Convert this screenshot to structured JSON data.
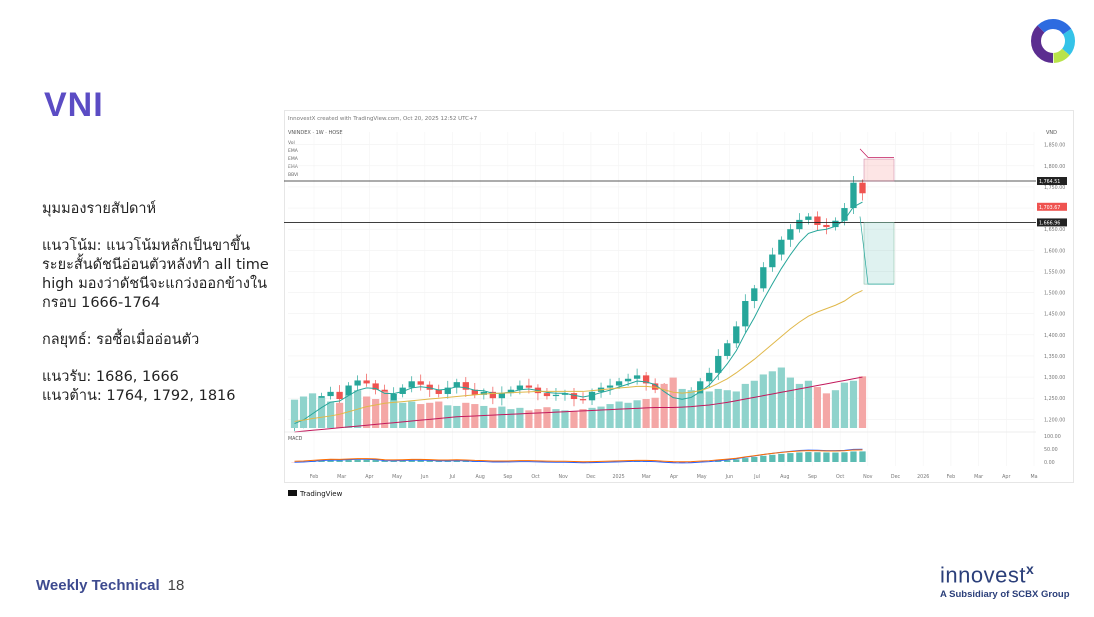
{
  "slide": {
    "title": "VNI",
    "notes": [
      "มุมมองรายสัปดาห์",
      "แนวโน้ม: แนวโน้มหลักเป็นขาขึ้น ระยะสั้นดัชนีอ่อนตัวหลังทำ all time high มองว่าดัชนีจะแกว่งออกข้างในกรอบ 1666-1764",
      "กลยุทธ์: รอซื้อเมื่ออ่อนตัว",
      "แนวรับ: 1686, 1666\nแนวต้าน: 1764, 1792, 1816"
    ],
    "footer_label": "Weekly Technical",
    "page_number": "18"
  },
  "brand": {
    "name": "innovest",
    "superscript": "x",
    "tagline": "A Subsidiary of SCBX Group"
  },
  "colors": {
    "accent": "#5b4cc4",
    "up": "#26a69a",
    "down": "#ef5350",
    "ema_short": "#26a69a",
    "ema_mid": "#e0b84a",
    "ema_long": "#c2185b"
  },
  "chart_data": {
    "type": "candlestick",
    "header": "InnovestX created with TradingView.com, Oct 20, 2025 12:52 UTC+7",
    "symbol_line": "VNINDEX · 1W · HOSE",
    "legend": [
      "Vol",
      "EMA",
      "EMA",
      "EMA",
      "BBVI"
    ],
    "price_axis_label": "VND",
    "y_ticks": [
      1200,
      1250,
      1300,
      1350,
      1400,
      1450,
      1500,
      1550,
      1600,
      1650,
      1700,
      1750,
      1800,
      1850
    ],
    "ylim": [
      1170,
      1880
    ],
    "x_labels": [
      "Feb",
      "Mar",
      "Apr",
      "May",
      "Jun",
      "Jul",
      "Aug",
      "Sep",
      "Oct",
      "Nov",
      "Dec",
      "2025",
      "Mar",
      "Apr",
      "May",
      "Jun",
      "Jul",
      "Aug",
      "Sep",
      "Oct",
      "Nov",
      "Dec",
      "2026",
      "Feb",
      "Mar",
      "Apr",
      "Ma"
    ],
    "horizontal_levels": [
      1764,
      1666
    ],
    "price_labels": [
      "1,764.51",
      "1,703.67",
      "1,666.96"
    ],
    "closes": [
      1190,
      1215,
      1240,
      1255,
      1265,
      1248,
      1280,
      1292,
      1285,
      1270,
      1240,
      1260,
      1275,
      1290,
      1282,
      1270,
      1260,
      1275,
      1288,
      1270,
      1258,
      1265,
      1250,
      1262,
      1270,
      1280,
      1275,
      1262,
      1255,
      1258,
      1262,
      1248,
      1245,
      1265,
      1275,
      1280,
      1290,
      1296,
      1304,
      1285,
      1270,
      1235,
      1225,
      1240,
      1260,
      1290,
      1310,
      1350,
      1380,
      1420,
      1480,
      1510,
      1560,
      1590,
      1625,
      1650,
      1672,
      1680,
      1660,
      1655,
      1670,
      1700,
      1760,
      1735
    ],
    "volumes": [
      0.45,
      0.5,
      0.55,
      0.48,
      0.42,
      0.4,
      0.52,
      0.6,
      0.5,
      0.46,
      0.58,
      0.44,
      0.4,
      0.42,
      0.38,
      0.4,
      0.42,
      0.36,
      0.35,
      0.4,
      0.38,
      0.35,
      0.32,
      0.34,
      0.3,
      0.32,
      0.28,
      0.3,
      0.33,
      0.3,
      0.28,
      0.26,
      0.3,
      0.32,
      0.34,
      0.38,
      0.42,
      0.4,
      0.44,
      0.46,
      0.48,
      0.7,
      0.8,
      0.62,
      0.6,
      0.55,
      0.58,
      0.62,
      0.6,
      0.58,
      0.7,
      0.75,
      0.85,
      0.9,
      0.96,
      0.8,
      0.7,
      0.75,
      0.65,
      0.55,
      0.6,
      0.72,
      0.75,
      0.82
    ],
    "ema_mid_points": [
      1195,
      1198,
      1202,
      1205,
      1208,
      1212,
      1218,
      1224,
      1230,
      1234,
      1238,
      1240,
      1242,
      1244,
      1246,
      1248,
      1250,
      1252,
      1254,
      1256,
      1258,
      1260,
      1261,
      1262,
      1263,
      1264,
      1265,
      1266,
      1266,
      1266,
      1266,
      1266,
      1266,
      1268,
      1270,
      1272,
      1274,
      1276,
      1278,
      1278,
      1276,
      1270,
      1264,
      1262,
      1264,
      1268,
      1275,
      1285,
      1296,
      1310,
      1326,
      1342,
      1360,
      1378,
      1396,
      1414,
      1430,
      1444,
      1454,
      1462,
      1470,
      1480,
      1495,
      1505
    ],
    "ema_long_points": [
      1170,
      1172,
      1174,
      1176,
      1178,
      1180,
      1182,
      1184,
      1186,
      1188,
      1190,
      1192,
      1194,
      1196,
      1198,
      1200,
      1202,
      1204,
      1206,
      1207,
      1208,
      1209,
      1210,
      1211,
      1212,
      1213,
      1214,
      1215,
      1216,
      1217,
      1218,
      1219,
      1220,
      1221,
      1222,
      1223,
      1224,
      1225,
      1226,
      1227,
      1228,
      1228,
      1228,
      1229,
      1230,
      1232,
      1234,
      1237,
      1240,
      1244,
      1248,
      1252,
      1256,
      1260,
      1264,
      1268,
      1272,
      1276,
      1280,
      1284,
      1288,
      1292,
      1296,
      1300
    ],
    "macd_label": "MACD",
    "macd_ticks": [
      "100.00",
      "50.00",
      "0.00"
    ],
    "watermark": "TradingView"
  }
}
